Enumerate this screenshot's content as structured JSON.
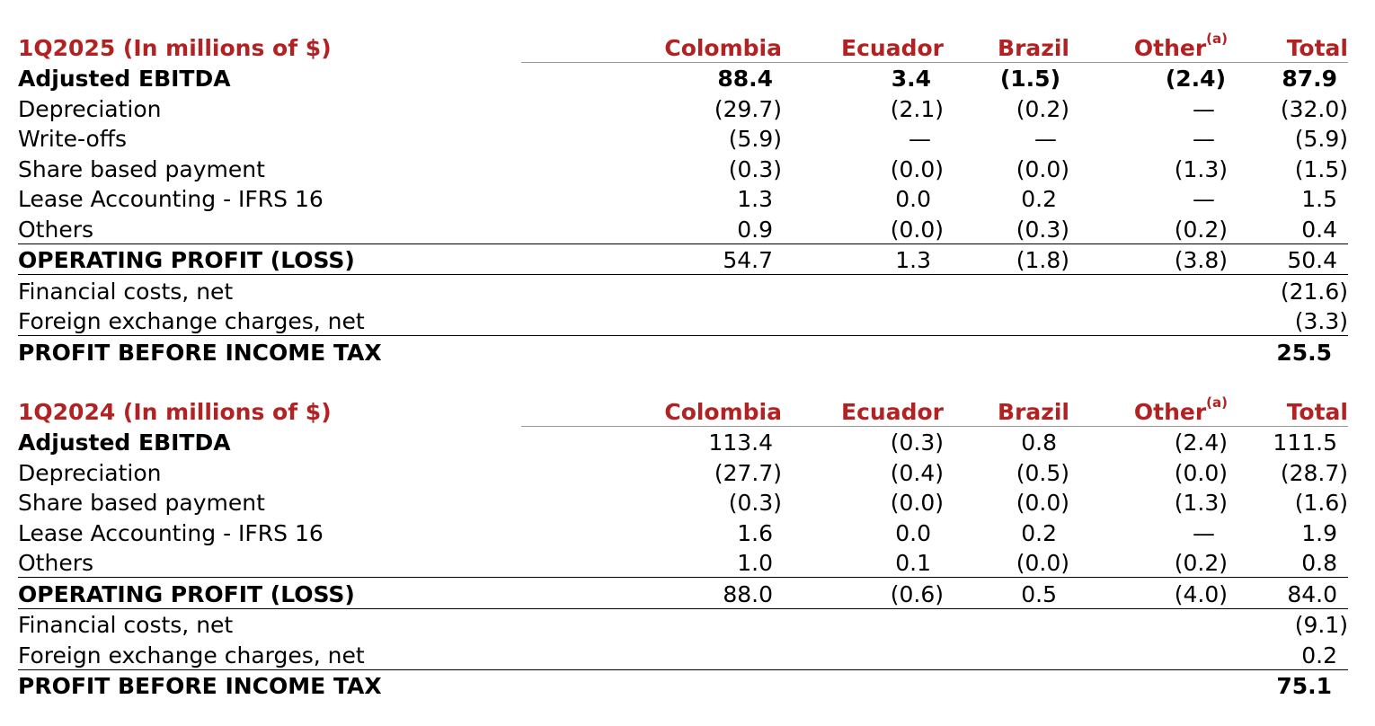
{
  "columns": [
    "Colombia",
    "Ecuador",
    "Brazil",
    "Other",
    "Total"
  ],
  "other_footnote": "(a)",
  "sections": [
    {
      "title": "1Q2025 (In millions of $)",
      "rows": [
        {
          "label": "Adjusted EBITDA",
          "values": [
            "88.4",
            "3.4",
            "(1.5)",
            "(2.4)",
            "87.9"
          ]
        },
        {
          "label": "Depreciation",
          "values": [
            "(29.7)",
            "(2.1)",
            "(0.2)",
            "—",
            "(32.0)"
          ]
        },
        {
          "label": "Write-offs",
          "values": [
            "(5.9)",
            "—",
            "—",
            "—",
            "(5.9)"
          ]
        },
        {
          "label": "Share based payment",
          "values": [
            "(0.3)",
            "(0.0)",
            "(0.0)",
            "(1.3)",
            "(1.5)"
          ]
        },
        {
          "label": "Lease Accounting - IFRS 16",
          "values": [
            "1.3",
            "0.0",
            "0.2",
            "—",
            "1.5"
          ]
        },
        {
          "label": "Others",
          "values": [
            "0.9",
            "(0.0)",
            "(0.3)",
            "(0.2)",
            "0.4"
          ]
        },
        {
          "label": "OPERATING PROFIT (LOSS)",
          "values": [
            "54.7",
            "1.3",
            "(1.8)",
            "(3.8)",
            "50.4"
          ]
        },
        {
          "label": "Financial costs, net",
          "values": [
            "",
            "",
            "",
            "",
            "(21.6)"
          ]
        },
        {
          "label": "Foreign exchange charges, net",
          "values": [
            "",
            "",
            "",
            "",
            "(3.3)"
          ]
        },
        {
          "label": "PROFIT BEFORE INCOME TAX",
          "values": [
            "",
            "",
            "",
            "",
            "25.5"
          ]
        }
      ]
    },
    {
      "title": "1Q2024 (In millions of $)",
      "rows": [
        {
          "label": "Adjusted EBITDA",
          "values": [
            "113.4",
            "(0.3)",
            "0.8",
            "(2.4)",
            "111.5"
          ]
        },
        {
          "label": "Depreciation",
          "values": [
            "(27.7)",
            "(0.4)",
            "(0.5)",
            "(0.0)",
            "(28.7)"
          ]
        },
        {
          "label": "Share based payment",
          "values": [
            "(0.3)",
            "(0.0)",
            "(0.0)",
            "(1.3)",
            "(1.6)"
          ]
        },
        {
          "label": "Lease Accounting - IFRS 16",
          "values": [
            "1.6",
            "0.0",
            "0.2",
            "—",
            "1.9"
          ]
        },
        {
          "label": "Others",
          "values": [
            "1.0",
            "0.1",
            "(0.0)",
            "(0.2)",
            "0.8"
          ]
        },
        {
          "label": "OPERATING PROFIT (LOSS)",
          "values": [
            "88.0",
            "(0.6)",
            "0.5",
            "(4.0)",
            "84.0"
          ]
        },
        {
          "label": "Financial costs, net",
          "values": [
            "",
            "",
            "",
            "",
            "(9.1)"
          ]
        },
        {
          "label": "Foreign exchange charges, net",
          "values": [
            "",
            "",
            "",
            "",
            "0.2"
          ]
        },
        {
          "label": "PROFIT BEFORE INCOME TAX",
          "values": [
            "",
            "",
            "",
            "",
            "75.1"
          ]
        }
      ]
    }
  ]
}
